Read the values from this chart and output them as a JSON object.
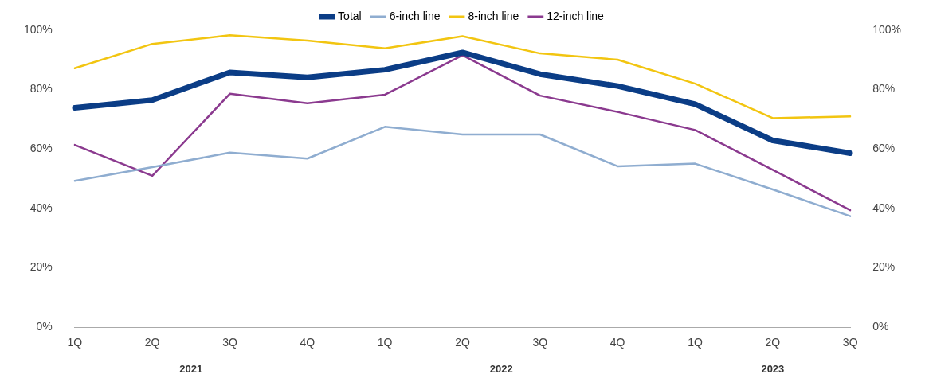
{
  "chart_data": {
    "type": "line",
    "categories": [
      "1Q",
      "2Q",
      "3Q",
      "4Q",
      "1Q",
      "2Q",
      "3Q",
      "4Q",
      "1Q",
      "2Q",
      "3Q"
    ],
    "series": [
      {
        "name": "Total",
        "color": "#0b3d86",
        "values": [
          73.9,
          76.5,
          85.8,
          84.1,
          86.7,
          92.5,
          85.2,
          81.2,
          75.1,
          62.9,
          58.6
        ]
      },
      {
        "name": "6-inch line",
        "color": "#8fadd0",
        "values": [
          49.3,
          53.9,
          58.8,
          56.8,
          67.5,
          64.9,
          64.9,
          54.2,
          55.1,
          46.4,
          37.4
        ]
      },
      {
        "name": "8-inch line",
        "color": "#f2c511",
        "values": [
          87.2,
          95.4,
          98.3,
          96.5,
          93.9,
          98.0,
          92.2,
          90.1,
          82.0,
          70.4,
          71.0
        ]
      },
      {
        "name": "12-inch line",
        "color": "#8b3a8f",
        "values": [
          61.4,
          51.0,
          78.6,
          75.4,
          78.3,
          91.6,
          78.0,
          72.5,
          66.4,
          53.0,
          39.4
        ]
      }
    ],
    "ylim": [
      0,
      100
    ],
    "yticks": [
      {
        "value": 0,
        "label": "0%"
      },
      {
        "value": 20,
        "label": "20%"
      },
      {
        "value": 40,
        "label": "40%"
      },
      {
        "value": 60,
        "label": "60%"
      },
      {
        "value": 80,
        "label": "80%"
      },
      {
        "value": 100,
        "label": "100%"
      }
    ],
    "y2lim": [
      0,
      100
    ],
    "y2ticks": [
      {
        "value": 0,
        "label": "0%"
      },
      {
        "value": 20,
        "label": "20%"
      },
      {
        "value": 40,
        "label": "40%"
      },
      {
        "value": 60,
        "label": "60%"
      },
      {
        "value": 80,
        "label": "80%"
      },
      {
        "value": 100,
        "label": "100%"
      }
    ],
    "annotations": [
      "2021",
      "2022",
      "2023"
    ],
    "legend": "top",
    "grid": false,
    "marker": "none",
    "line_style": "solid"
  }
}
